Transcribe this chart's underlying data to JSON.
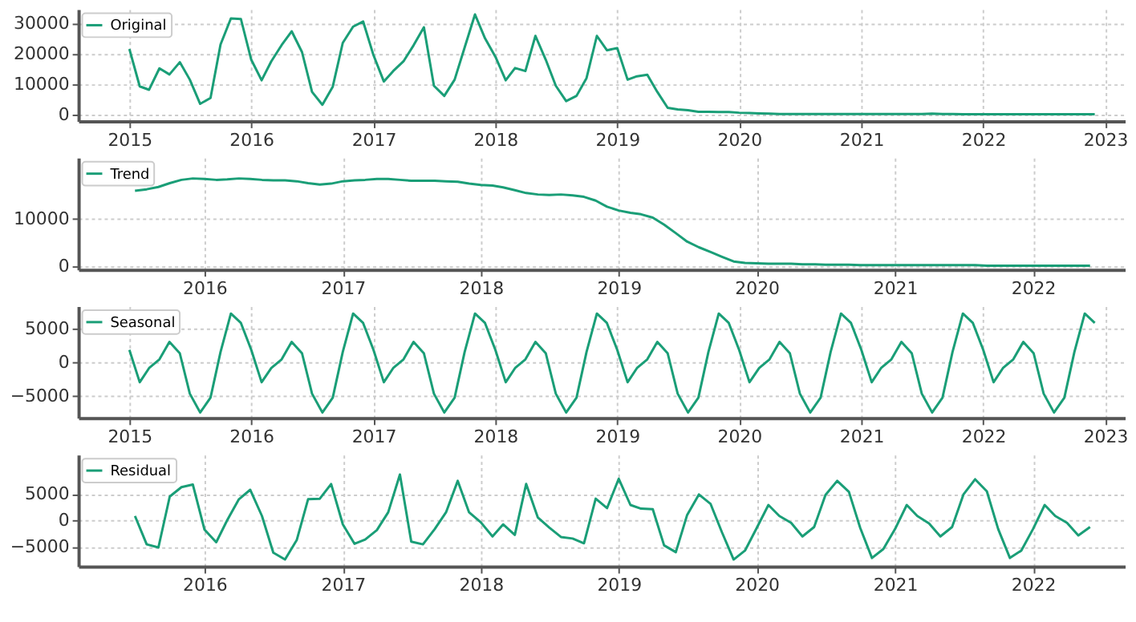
{
  "chart_data": [
    {
      "type": "line",
      "x": [
        "2015-01",
        "2015-02",
        "2015-03",
        "2015-04",
        "2015-05",
        "2015-06",
        "2015-07",
        "2015-08",
        "2015-09",
        "2015-10",
        "2015-11",
        "2015-12",
        "2016-01",
        "2016-02",
        "2016-03",
        "2016-04",
        "2016-05",
        "2016-06",
        "2016-07",
        "2016-08",
        "2016-09",
        "2016-10",
        "2016-11",
        "2016-12",
        "2017-01",
        "2017-02",
        "2017-03",
        "2017-04",
        "2017-05",
        "2017-06",
        "2017-07",
        "2017-08",
        "2017-09",
        "2017-10",
        "2017-11",
        "2017-12",
        "2018-01",
        "2018-02",
        "2018-03",
        "2018-04",
        "2018-05",
        "2018-06",
        "2018-07",
        "2018-08",
        "2018-09",
        "2018-10",
        "2018-11",
        "2018-12",
        "2019-01",
        "2019-02",
        "2019-03",
        "2019-04",
        "2019-05",
        "2019-06",
        "2019-07",
        "2019-08",
        "2019-09",
        "2019-10",
        "2019-11",
        "2019-12",
        "2020-01",
        "2020-02",
        "2020-03",
        "2020-04",
        "2020-05",
        "2020-06",
        "2020-07",
        "2020-08",
        "2020-09",
        "2020-10",
        "2020-11",
        "2020-12",
        "2021-01",
        "2021-02",
        "2021-03",
        "2021-04",
        "2021-05",
        "2021-06",
        "2021-07",
        "2021-08",
        "2021-09",
        "2021-10",
        "2021-11",
        "2021-12",
        "2022-01",
        "2022-02",
        "2022-03",
        "2022-04",
        "2022-05",
        "2022-06",
        "2022-07",
        "2022-08",
        "2022-09",
        "2022-10",
        "2022-11",
        "2022-12"
      ],
      "series": [
        {
          "name": "Original",
          "color": "#1a9e77",
          "values": [
            21500,
            9300,
            8200,
            15200,
            13200,
            17200,
            11500,
            3600,
            5500,
            23000,
            31500,
            31300,
            18000,
            11300,
            17500,
            22800,
            27300,
            20500,
            7500,
            3300,
            9200,
            23500,
            28800,
            30500,
            19500,
            10900,
            14300,
            17500,
            22700,
            28600,
            9500,
            6200,
            11500,
            22000,
            32800,
            25000,
            19000,
            11300,
            15300,
            14300,
            25800,
            18000,
            9500,
            4500,
            6200,
            12000,
            25800,
            21100,
            21800,
            11500,
            12600,
            13100,
            7500,
            2300,
            1800,
            1500,
            1000,
            1000,
            900,
            900,
            700,
            600,
            500,
            400,
            300,
            300,
            300,
            300,
            300,
            300,
            300,
            300,
            300,
            300,
            300,
            300,
            300,
            300,
            300,
            400,
            300,
            300,
            200,
            200,
            200,
            200,
            200,
            200,
            200,
            200,
            200,
            200,
            200,
            200,
            200,
            200
          ]
        }
      ],
      "xlim": [
        "2014-08",
        "2023-03"
      ],
      "xticks": [
        "2015",
        "2016",
        "2017",
        "2018",
        "2019",
        "2020",
        "2021",
        "2022",
        "2023"
      ],
      "ylim": [
        -2000,
        34500
      ],
      "yticks": [
        0,
        10000,
        20000,
        30000
      ],
      "grid": true,
      "legend": "top left"
    },
    {
      "type": "line",
      "x": [
        "2015-07",
        "2015-08",
        "2015-09",
        "2015-10",
        "2015-11",
        "2015-12",
        "2016-01",
        "2016-02",
        "2016-03",
        "2016-04",
        "2016-05",
        "2016-06",
        "2016-07",
        "2016-08",
        "2016-09",
        "2016-10",
        "2016-11",
        "2016-12",
        "2017-01",
        "2017-02",
        "2017-03",
        "2017-04",
        "2017-05",
        "2017-06",
        "2017-07",
        "2017-08",
        "2017-09",
        "2017-10",
        "2017-11",
        "2017-12",
        "2018-01",
        "2018-02",
        "2018-03",
        "2018-04",
        "2018-05",
        "2018-06",
        "2018-07",
        "2018-08",
        "2018-09",
        "2018-10",
        "2018-11",
        "2018-12",
        "2019-01",
        "2019-02",
        "2019-03",
        "2019-04",
        "2019-05",
        "2019-06",
        "2019-07",
        "2019-08",
        "2019-09",
        "2019-10",
        "2019-11",
        "2019-12",
        "2020-01",
        "2020-02",
        "2020-03",
        "2020-04",
        "2020-05",
        "2020-06",
        "2020-07",
        "2020-08",
        "2020-09",
        "2020-10",
        "2020-11",
        "2020-12",
        "2021-01",
        "2021-02",
        "2021-03",
        "2021-04",
        "2021-05",
        "2021-06",
        "2021-07",
        "2021-08",
        "2021-09",
        "2021-10",
        "2021-11",
        "2021-12",
        "2022-01",
        "2022-02",
        "2022-03",
        "2022-04",
        "2022-05",
        "2022-06"
      ],
      "series": [
        {
          "name": "Trend",
          "color": "#1a9e77",
          "values": [
            16000,
            16300,
            16800,
            17600,
            18300,
            18600,
            18500,
            18300,
            18400,
            18600,
            18500,
            18300,
            18200,
            18200,
            18000,
            17600,
            17300,
            17500,
            18000,
            18200,
            18300,
            18500,
            18500,
            18300,
            18100,
            18100,
            18100,
            18000,
            17900,
            17500,
            17200,
            17100,
            16700,
            16100,
            15500,
            15200,
            15100,
            15200,
            15000,
            14700,
            13900,
            12600,
            11800,
            11300,
            11000,
            10300,
            8800,
            7000,
            5200,
            4000,
            3000,
            2000,
            1000,
            700,
            600,
            500,
            500,
            500,
            400,
            400,
            300,
            300,
            300,
            200,
            200,
            200,
            200,
            200,
            200,
            200,
            200,
            200,
            200,
            200,
            100,
            100,
            100,
            100,
            100,
            100,
            100,
            100,
            100,
            100
          ]
        }
      ],
      "xlim": [
        "2015-02",
        "2022-09"
      ],
      "xticks": [
        "2016",
        "2017",
        "2018",
        "2019",
        "2020",
        "2021",
        "2022"
      ],
      "ylim": [
        -700,
        23000
      ],
      "yticks": [
        0,
        10000
      ],
      "grid": true,
      "legend": "top left"
    },
    {
      "type": "line",
      "x": [
        "2015-01",
        "2015-02",
        "2015-03",
        "2015-04",
        "2015-05",
        "2015-06",
        "2015-07",
        "2015-08",
        "2015-09",
        "2015-10",
        "2015-11",
        "2015-12",
        "2016-01",
        "2016-02",
        "2016-03",
        "2016-04",
        "2016-05",
        "2016-06",
        "2016-07",
        "2016-08",
        "2016-09",
        "2016-10",
        "2016-11",
        "2016-12",
        "2017-01",
        "2017-02",
        "2017-03",
        "2017-04",
        "2017-05",
        "2017-06",
        "2017-07",
        "2017-08",
        "2017-09",
        "2017-10",
        "2017-11",
        "2017-12",
        "2018-01",
        "2018-02",
        "2018-03",
        "2018-04",
        "2018-05",
        "2018-06",
        "2018-07",
        "2018-08",
        "2018-09",
        "2018-10",
        "2018-11",
        "2018-12",
        "2019-01",
        "2019-02",
        "2019-03",
        "2019-04",
        "2019-05",
        "2019-06",
        "2019-07",
        "2019-08",
        "2019-09",
        "2019-10",
        "2019-11",
        "2019-12",
        "2020-01",
        "2020-02",
        "2020-03",
        "2020-04",
        "2020-05",
        "2020-06",
        "2020-07",
        "2020-08",
        "2020-09",
        "2020-10",
        "2020-11",
        "2020-12",
        "2021-01",
        "2021-02",
        "2021-03",
        "2021-04",
        "2021-05",
        "2021-06",
        "2021-07",
        "2021-08",
        "2021-09",
        "2021-10",
        "2021-11",
        "2021-12",
        "2022-01",
        "2022-02",
        "2022-03",
        "2022-04",
        "2022-05",
        "2022-06",
        "2022-07",
        "2022-08",
        "2022-09",
        "2022-10",
        "2022-11",
        "2022-12"
      ],
      "series": [
        {
          "name": "Seasonal",
          "color": "#1a9e77",
          "values": [
            1800,
            -3000,
            -900,
            400,
            3000,
            1300,
            -4700,
            -7500,
            -5300,
            1500,
            7200,
            5800,
            1800,
            -3000,
            -900,
            400,
            3000,
            1300,
            -4700,
            -7500,
            -5300,
            1500,
            7200,
            5800,
            1800,
            -3000,
            -900,
            400,
            3000,
            1300,
            -4700,
            -7500,
            -5300,
            1500,
            7200,
            5800,
            1800,
            -3000,
            -900,
            400,
            3000,
            1300,
            -4700,
            -7500,
            -5300,
            1500,
            7200,
            5800,
            1800,
            -3000,
            -900,
            400,
            3000,
            1300,
            -4700,
            -7500,
            -5300,
            1500,
            7200,
            5800,
            1800,
            -3000,
            -900,
            400,
            3000,
            1300,
            -4700,
            -7500,
            -5300,
            1500,
            7200,
            5800,
            1800,
            -3000,
            -900,
            400,
            3000,
            1300,
            -4700,
            -7500,
            -5300,
            1500,
            7200,
            5800,
            1800,
            -3000,
            -900,
            400,
            3000,
            1300,
            -4700,
            -7500,
            -5300,
            1500,
            7200,
            5800
          ]
        }
      ],
      "xlim": [
        "2014-08",
        "2023-03"
      ],
      "xticks": [
        "2015",
        "2016",
        "2017",
        "2018",
        "2019",
        "2020",
        "2021",
        "2022",
        "2023"
      ],
      "ylim": [
        -8300,
        8300
      ],
      "yticks": [
        -5000,
        0,
        5000
      ],
      "grid": true,
      "legend": "top left"
    },
    {
      "type": "line",
      "x": [
        "2015-07",
        "2015-08",
        "2015-09",
        "2015-10",
        "2015-11",
        "2015-12",
        "2016-01",
        "2016-02",
        "2016-03",
        "2016-04",
        "2016-05",
        "2016-06",
        "2016-07",
        "2016-08",
        "2016-09",
        "2016-10",
        "2016-11",
        "2016-12",
        "2017-01",
        "2017-02",
        "2017-03",
        "2017-04",
        "2017-05",
        "2017-06",
        "2017-07",
        "2017-08",
        "2017-09",
        "2017-10",
        "2017-11",
        "2017-12",
        "2018-01",
        "2018-02",
        "2018-03",
        "2018-04",
        "2018-05",
        "2018-06",
        "2018-07",
        "2018-08",
        "2018-09",
        "2018-10",
        "2018-11",
        "2018-12",
        "2019-01",
        "2019-02",
        "2019-03",
        "2019-04",
        "2019-05",
        "2019-06",
        "2019-07",
        "2019-08",
        "2019-09",
        "2019-10",
        "2019-11",
        "2019-12",
        "2020-01",
        "2020-02",
        "2020-03",
        "2020-04",
        "2020-05",
        "2020-06",
        "2020-07",
        "2020-08",
        "2020-09",
        "2020-10",
        "2020-11",
        "2020-12",
        "2021-01",
        "2021-02",
        "2021-03",
        "2021-04",
        "2021-05",
        "2021-06",
        "2021-07",
        "2021-08",
        "2021-09",
        "2021-10",
        "2021-11",
        "2021-12",
        "2022-01",
        "2022-02",
        "2022-03",
        "2022-04",
        "2022-05",
        "2022-06"
      ],
      "series": [
        {
          "name": "Residual",
          "color": "#1a9e77",
          "values": [
            800,
            -4600,
            -5200,
            4500,
            6300,
            6800,
            -1800,
            -4200,
            0,
            4000,
            5800,
            800,
            -6200,
            -7500,
            -3800,
            4000,
            4100,
            6900,
            -800,
            -4500,
            -3700,
            -1900,
            1500,
            8700,
            -4100,
            -4600,
            -1700,
            1500,
            7500,
            1500,
            -400,
            -3100,
            -800,
            -2800,
            6900,
            500,
            -1400,
            -3200,
            -3500,
            -4400,
            4100,
            2300,
            7900,
            2900,
            2200,
            2100,
            -4800,
            -6100,
            1000,
            4900,
            3100,
            -2300,
            -7500,
            -5800,
            -1500,
            2900,
            800,
            -500,
            -3100,
            -1300,
            4800,
            7500,
            5400,
            -1500,
            -7200,
            -5500,
            -1700,
            2900,
            800,
            -600,
            -3100,
            -1300,
            4900,
            7800,
            5500,
            -1700,
            -7200,
            -5800,
            -1700,
            2900,
            800,
            -500,
            -2900,
            -1300
          ]
        }
      ],
      "xlim": [
        "2015-02",
        "2022-09"
      ],
      "xticks": [
        "2016",
        "2017",
        "2018",
        "2019",
        "2020",
        "2021",
        "2022"
      ],
      "ylim": [
        -8800,
        12500
      ],
      "yticks": [
        -5000,
        0,
        5000
      ],
      "grid": true,
      "legend": "top left"
    }
  ]
}
